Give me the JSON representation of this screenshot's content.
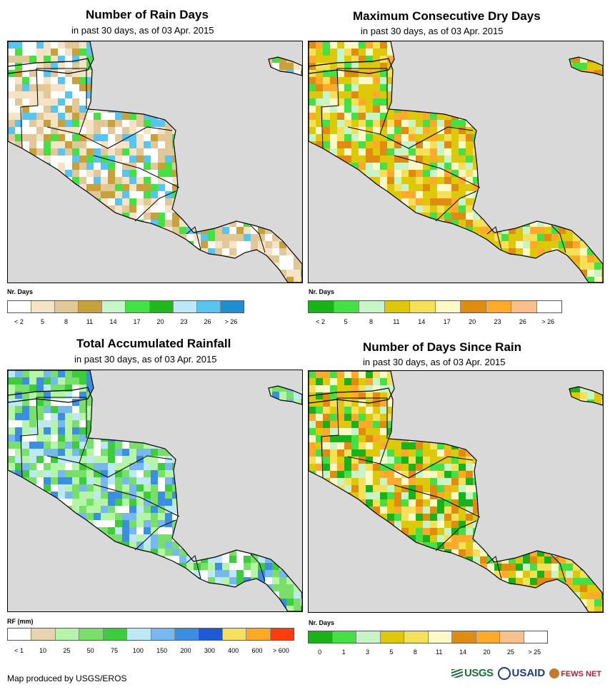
{
  "panels": [
    {
      "id": "rain-days",
      "title": "Number of Rain Days",
      "subtitle": "in past 30 days, as of 03 Apr. 2015",
      "legend_title": "Nr. Days",
      "legend_colors": [
        "#ffffff",
        "#f5e3c6",
        "#e2c898",
        "#c9a13a",
        "#c8f5c8",
        "#44e044",
        "#1fb81f",
        "#bde8f5",
        "#59c4f0",
        "#1f8fd1"
      ],
      "legend_ticks": [
        "< 2",
        "5",
        "8",
        "11",
        "14",
        "17",
        "20",
        "23",
        "26",
        "> 26"
      ],
      "map_palette": [
        "#ffffff",
        "#f5e3c6",
        "#e2c898",
        "#ffffff",
        "#f5e3c6",
        "#e2c898",
        "#c9a13a",
        "#44e044",
        "#59c4f0"
      ]
    },
    {
      "id": "dry-days",
      "title": "Maximum Consecutive Dry Days",
      "subtitle": "in past 30 days, as of 03 Apr. 2015",
      "legend_title": "Nr. Days",
      "legend_colors": [
        "#19b219",
        "#44e044",
        "#c8f5c8",
        "#ddc80a",
        "#f5e05a",
        "#fff9c8",
        "#e08c10",
        "#ffaa2a",
        "#f8c08c",
        "#ffffff"
      ],
      "legend_ticks": [
        "< 2",
        "5",
        "8",
        "11",
        "14",
        "17",
        "20",
        "23",
        "26",
        "> 26"
      ],
      "map_palette": [
        "#ddc80a",
        "#ddc80a",
        "#f5e05a",
        "#fff9c8",
        "#c8f5c8",
        "#44e044",
        "#e08c10",
        "#ffaa2a",
        "#ddc80a"
      ]
    },
    {
      "id": "rainfall",
      "title": "Total Accumulated Rainfall",
      "subtitle": "in past 30 days, as of 03 Apr. 2015",
      "legend_title": "RF (mm)",
      "legend_colors": [
        "#ffffff",
        "#e8d3b0",
        "#b5f5a8",
        "#78e06a",
        "#3ccc3c",
        "#bde8f5",
        "#78b8f0",
        "#3c8ee0",
        "#1e5ad6",
        "#f5e060",
        "#ffaa22",
        "#ff3c0a"
      ],
      "legend_ticks": [
        "< 1",
        "10",
        "25",
        "50",
        "75",
        "100",
        "150",
        "200",
        "300",
        "400",
        "600",
        "> 600"
      ],
      "map_palette": [
        "#b5f5a8",
        "#78e06a",
        "#3ccc3c",
        "#b5f5a8",
        "#78e06a",
        "#bde8f5",
        "#78b8f0",
        "#3c8ee0",
        "#ffffff"
      ]
    },
    {
      "id": "since-rain",
      "title": "Number of Days Since Rain",
      "subtitle": "in past 30 days, as of 03 Apr. 2015",
      "legend_title": "Nr. Days",
      "legend_colors": [
        "#19b219",
        "#44e044",
        "#c8f5c8",
        "#ddc80a",
        "#f5e05a",
        "#fff9c8",
        "#e08c10",
        "#ffaa2a",
        "#f8c08c",
        "#ffffff"
      ],
      "legend_ticks": [
        "0",
        "1",
        "3",
        "5",
        "8",
        "11",
        "14",
        "20",
        "25",
        "> 25"
      ],
      "map_palette": [
        "#ddc80a",
        "#ddc80a",
        "#f5e05a",
        "#19b219",
        "#44e044",
        "#ffaa2a",
        "#e08c10",
        "#c8f5c8",
        "#fff9c8"
      ]
    }
  ],
  "footer": {
    "credit": "Map produced by USGS/EROS",
    "logos": [
      "USGS",
      "USAID",
      "FEWS NET"
    ]
  },
  "colors": {
    "ocean": "#d9d9d9",
    "border": "#000000"
  }
}
